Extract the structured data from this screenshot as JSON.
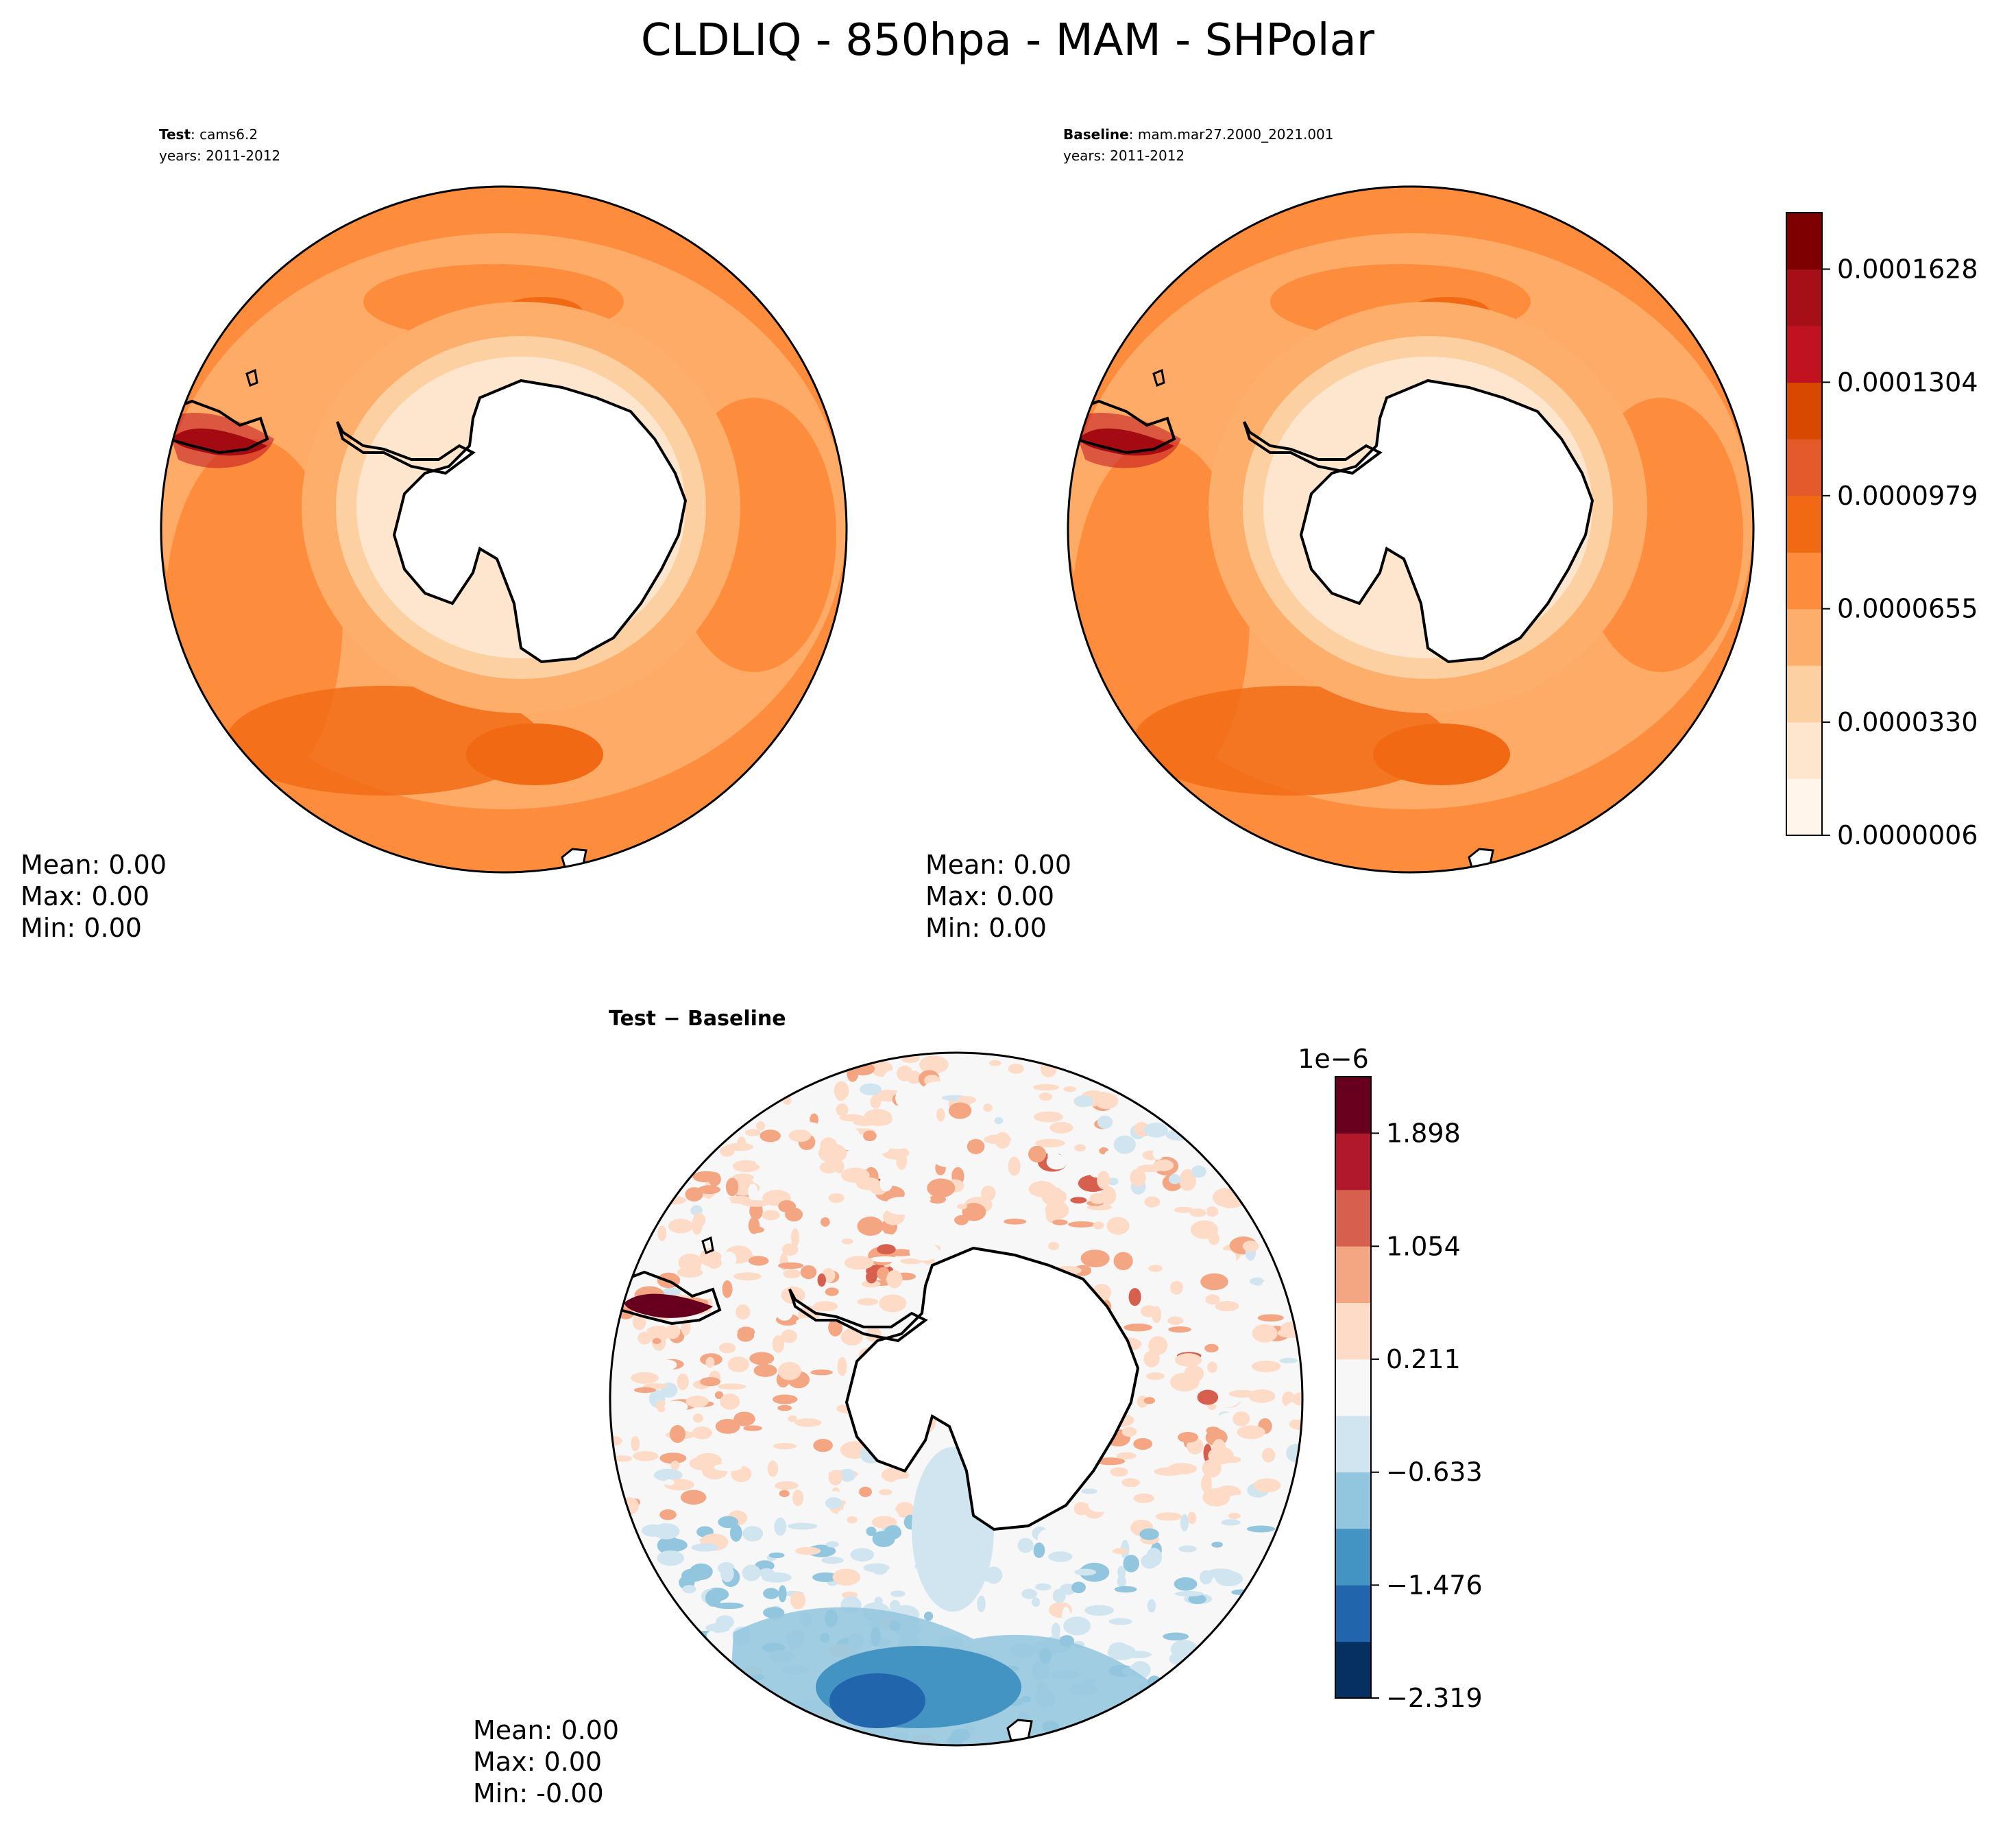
{
  "suptitle": "CLDLIQ - 850hpa - MAM - SHPolar",
  "colors": {
    "seq": [
      "#fff5eb",
      "#fee6ce",
      "#fdd0a2",
      "#fdae6b",
      "#fd8d3c",
      "#f16913",
      "#e55a2b",
      "#d94801",
      "#c1121f",
      "#a50f15",
      "#7f0000"
    ],
    "div": [
      "#053061",
      "#2166ac",
      "#4393c3",
      "#92c5de",
      "#d1e5f0",
      "#f7f7f7",
      "#fddbc7",
      "#f4a582",
      "#d6604d",
      "#b2182b",
      "#67001f"
    ],
    "land": "#ffffff",
    "coast": "#000000"
  },
  "chart_data": [
    {
      "type": "heatmap",
      "projection": "south-polar-stereographic",
      "name": "test-panel",
      "title_bold": "Test",
      "title_rest": ": cams6.2",
      "years": "years: 2011-2012",
      "colormap": "seq",
      "stats": {
        "mean": "Mean:  0.00",
        "max": "Max:  0.00",
        "min": "Min:  0.00"
      }
    },
    {
      "type": "heatmap",
      "projection": "south-polar-stereographic",
      "name": "baseline-panel",
      "title_bold": "Baseline",
      "title_rest": ": mam.mar27.2000_2021.001",
      "years": "years: 2011-2012",
      "colormap": "seq",
      "stats": {
        "mean": "Mean:  0.00",
        "max": "Max:  0.00",
        "min": "Min:  0.00"
      },
      "colorbar": {
        "range": [
          6e-07,
          0.000179
        ],
        "levels": 11,
        "tick_values": [
          6e-07,
          3.3e-05,
          6.55e-05,
          9.79e-05,
          0.0001304,
          0.0001628
        ],
        "ticks": [
          "0.0000006",
          "0.0000330",
          "0.0000655",
          "0.0000979",
          "0.0001304",
          "0.0001628"
        ]
      }
    },
    {
      "type": "heatmap",
      "projection": "south-polar-stereographic",
      "name": "difference-panel",
      "title": "Test − Baseline",
      "colormap": "div",
      "stats": {
        "mean": "Mean:  0.00",
        "max": "Max:  0.00",
        "min": "Min: -0.00"
      },
      "colorbar": {
        "multiplier": "1e−6",
        "range": [
          -2.319,
          2.32
        ],
        "levels": 11,
        "tick_values": [
          -2.319,
          -1.476,
          -0.633,
          0.211,
          1.054,
          1.898
        ],
        "ticks": [
          "−2.319",
          "−1.476",
          "−0.633",
          "0.211",
          "1.054",
          "1.898"
        ]
      }
    }
  ]
}
